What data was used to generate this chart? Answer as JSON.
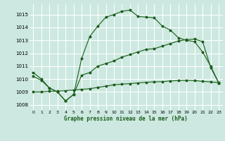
{
  "xlabel": "Graphe pression niveau de la mer (hPa)",
  "bg_color": "#cce8e0",
  "grid_color": "#b0d8d0",
  "line_color": "#1a5c1a",
  "xlim": [
    -0.5,
    23.5
  ],
  "ylim": [
    1007.6,
    1015.8
  ],
  "yticks": [
    1008,
    1009,
    1010,
    1011,
    1012,
    1013,
    1014,
    1015
  ],
  "xticks": [
    0,
    1,
    2,
    3,
    4,
    5,
    6,
    7,
    8,
    9,
    10,
    11,
    12,
    13,
    14,
    15,
    16,
    17,
    18,
    19,
    20,
    21,
    22,
    23
  ],
  "curve1_x": [
    0,
    1,
    2,
    3,
    4,
    5,
    6,
    7,
    8,
    9,
    10,
    11,
    12,
    13,
    14,
    15,
    16,
    17,
    18,
    19,
    20,
    21,
    22,
    23
  ],
  "curve1_y": [
    1010.5,
    1010.0,
    1009.3,
    1009.0,
    1008.3,
    1008.8,
    1011.6,
    1013.3,
    1014.1,
    1014.8,
    1015.0,
    1015.25,
    1015.35,
    1014.85,
    1014.8,
    1014.75,
    1014.1,
    1013.8,
    1013.2,
    1013.0,
    1012.9,
    1012.1,
    1011.0,
    1009.7
  ],
  "curve2_x": [
    0,
    1,
    2,
    3,
    4,
    5,
    6,
    7,
    8,
    9,
    10,
    11,
    12,
    13,
    14,
    15,
    16,
    17,
    18,
    19,
    20,
    21,
    22,
    23
  ],
  "curve2_y": [
    1010.2,
    1009.9,
    1009.3,
    1009.0,
    1008.3,
    1008.8,
    1010.3,
    1010.5,
    1011.0,
    1011.2,
    1011.4,
    1011.7,
    1011.9,
    1012.1,
    1012.3,
    1012.35,
    1012.55,
    1012.75,
    1012.95,
    1013.05,
    1013.1,
    1012.9,
    1010.9,
    1009.7
  ],
  "curve3_x": [
    0,
    1,
    2,
    3,
    4,
    5,
    6,
    7,
    8,
    9,
    10,
    11,
    12,
    13,
    14,
    15,
    16,
    17,
    18,
    19,
    20,
    21,
    22,
    23
  ],
  "curve3_y": [
    1009.0,
    1009.0,
    1009.05,
    1009.05,
    1009.1,
    1009.15,
    1009.2,
    1009.25,
    1009.35,
    1009.45,
    1009.55,
    1009.6,
    1009.65,
    1009.7,
    1009.75,
    1009.78,
    1009.8,
    1009.85,
    1009.88,
    1009.9,
    1009.88,
    1009.82,
    1009.78,
    1009.72
  ]
}
